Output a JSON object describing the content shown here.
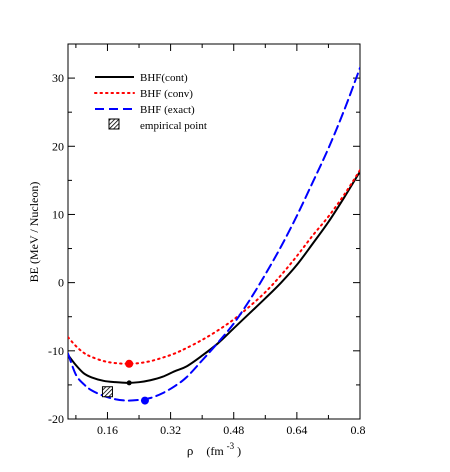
{
  "chart_data": {
    "type": "line",
    "xlabel": "ρ",
    "xlabel_unit_base": "(fm",
    "xlabel_unit_exp": "-3",
    "xlabel_unit_close": ")",
    "ylabel": "BE   (MeV / Nucleon)",
    "xlim": [
      0.06,
      0.8
    ],
    "ylim": [
      -20,
      35
    ],
    "xticks": [
      0.16,
      0.32,
      0.48,
      0.64,
      0.8
    ],
    "xtick_labels": [
      "0.16",
      "0.32",
      "0.48",
      "0.64",
      "0.8"
    ],
    "yticks": [
      -20,
      -10,
      0,
      10,
      20,
      30
    ],
    "ytick_labels": [
      "-20",
      "-10",
      "0",
      "10",
      "20",
      "30"
    ],
    "grid": false,
    "legend_position": "top-left",
    "series": [
      {
        "name": "BHF(cont)",
        "color": "#000000",
        "style": "solid",
        "x": [
          0.06,
          0.08,
          0.1,
          0.12,
          0.15,
          0.18,
          0.21,
          0.24,
          0.27,
          0.3,
          0.33,
          0.36,
          0.4,
          0.44,
          0.48,
          0.52,
          0.56,
          0.6,
          0.64,
          0.68,
          0.72,
          0.76,
          0.8
        ],
        "y": [
          -10.6,
          -12.1,
          -13.3,
          -13.9,
          -14.4,
          -14.6,
          -14.7,
          -14.6,
          -14.3,
          -13.8,
          -13.0,
          -12.3,
          -10.7,
          -8.9,
          -6.7,
          -4.5,
          -2.3,
          0.0,
          2.6,
          5.7,
          8.9,
          12.5,
          16.3
        ]
      },
      {
        "name": "BHF (conv)",
        "color": "#ff0000",
        "style": "dotted",
        "x": [
          0.06,
          0.08,
          0.1,
          0.12,
          0.15,
          0.18,
          0.21,
          0.24,
          0.27,
          0.3,
          0.33,
          0.36,
          0.4,
          0.44,
          0.48,
          0.52,
          0.56,
          0.6,
          0.64,
          0.68,
          0.72,
          0.76,
          0.8
        ],
        "y": [
          -8.0,
          -9.3,
          -10.3,
          -10.9,
          -11.5,
          -11.8,
          -11.9,
          -11.8,
          -11.5,
          -11.0,
          -10.4,
          -9.6,
          -8.4,
          -7.0,
          -5.4,
          -3.5,
          -1.4,
          1.1,
          3.9,
          6.9,
          9.7,
          12.9,
          16.5
        ]
      },
      {
        "name": "BHF (exact)",
        "color": "#0000ff",
        "style": "dashed",
        "x": [
          0.06,
          0.08,
          0.1,
          0.12,
          0.15,
          0.18,
          0.21,
          0.24,
          0.27,
          0.3,
          0.33,
          0.36,
          0.4,
          0.44,
          0.48,
          0.52,
          0.56,
          0.6,
          0.64,
          0.68,
          0.72,
          0.76,
          0.8
        ],
        "y": [
          -10.4,
          -13.5,
          -14.9,
          -15.8,
          -16.6,
          -17.1,
          -17.3,
          -17.2,
          -16.9,
          -16.2,
          -15.2,
          -13.9,
          -11.4,
          -8.8,
          -6.0,
          -2.6,
          1.2,
          5.3,
          9.8,
          14.7,
          19.7,
          25.3,
          31.5
        ]
      }
    ],
    "minima": [
      {
        "series": "BHF (conv)",
        "x": 0.215,
        "y": -11.9,
        "color": "#ff0000"
      },
      {
        "series": "BHF(cont)",
        "x": 0.215,
        "y": -14.7,
        "color": "#000000"
      },
      {
        "series": "BHF (exact)",
        "x": 0.255,
        "y": -17.3,
        "color": "#0000ff"
      }
    ],
    "empirical_point": {
      "name": "empirical point",
      "x": 0.16,
      "y": -16.0
    }
  }
}
